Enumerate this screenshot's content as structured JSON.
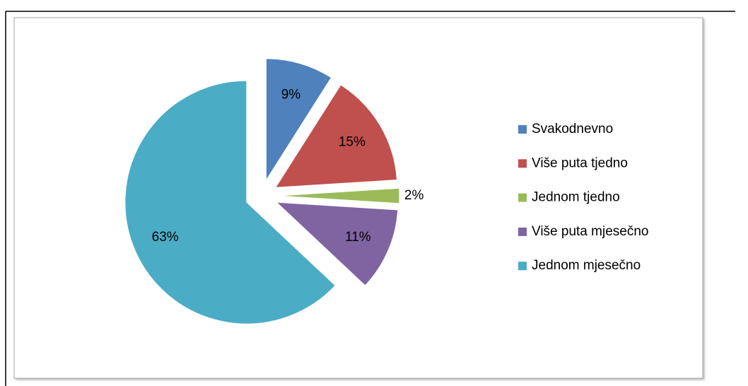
{
  "chart_data": {
    "type": "pie",
    "categories": [
      "Svakodnevno",
      "Više puta tjedno",
      "Jednom tjedno",
      "Više puta mjesečno",
      "Jednom mjesečno"
    ],
    "values": [
      9,
      15,
      2,
      11,
      63
    ],
    "value_labels": [
      "9%",
      "15%",
      "2%",
      "11%",
      "63%"
    ],
    "colors": [
      "#4f81bd",
      "#c0504d",
      "#9bbb59",
      "#8064a2",
      "#4bacc6"
    ],
    "legend": "right"
  }
}
